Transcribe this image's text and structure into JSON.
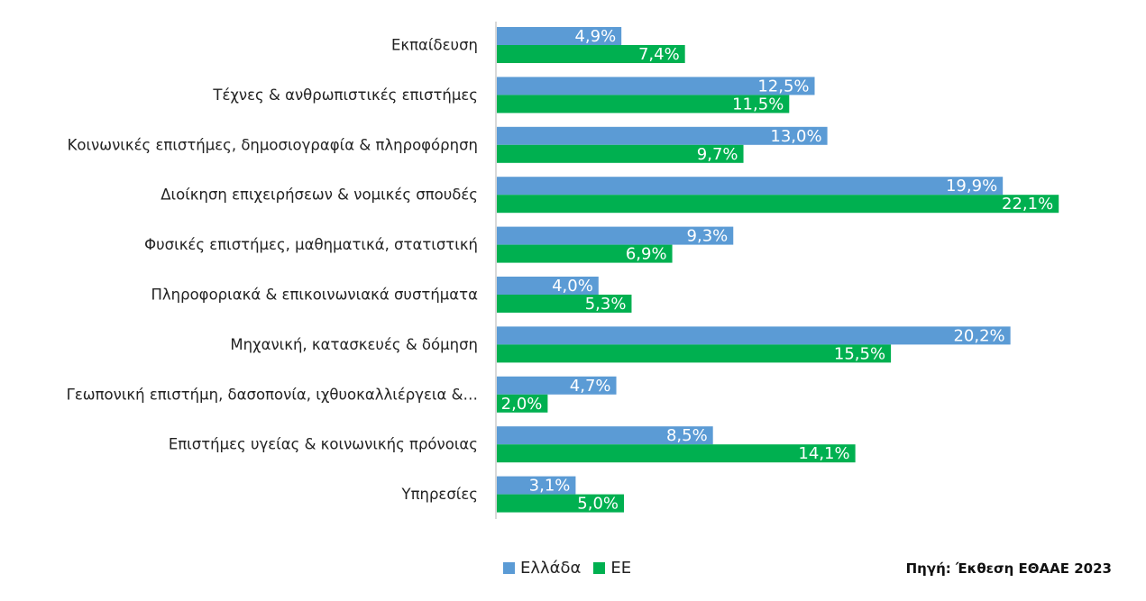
{
  "colors": {
    "ellada": "#5b9bd5",
    "ee": "#00b050",
    "axis": "#d9d9d9",
    "label_text": "#ffffff",
    "category_text": "#222222"
  },
  "legend": {
    "items": [
      {
        "label": "Ελλάδα",
        "color": "#5b9bd5"
      },
      {
        "label": "ΕΕ",
        "color": "#00b050"
      }
    ]
  },
  "source": "Πηγή: Έκθεση ΕΘΑΑΕ 2023",
  "chart_data": {
    "type": "bar",
    "orientation": "horizontal",
    "categories": [
      "Εκπαίδευση",
      "Τέχνες & ανθρωπιστικές επιστήμες",
      "Κοινωνικές επιστήμες, δημοσιογραφία & πληροφόρηση",
      "Διοίκηση επιχειρήσεων & νομικές σπουδές",
      "Φυσικές επιστήμες, μαθηματικά, στατιστική",
      "Πληροφοριακά & επικοινωνιακά συστήματα",
      "Μηχανική, κατασκευές & δόμηση",
      "Γεωπονική επιστήμη, δασοπονία, ιχθυοκαλλιέργεια &…",
      "Επιστήμες υγείας & κοινωνικής πρόνοιας",
      "Υπηρεσίες"
    ],
    "series": [
      {
        "name": "Ελλάδα",
        "color": "#5b9bd5",
        "values": [
          4.9,
          12.5,
          13.0,
          19.9,
          9.3,
          4.0,
          20.2,
          4.7,
          8.5,
          3.1
        ],
        "labels": [
          "4,9%",
          "12,5%",
          "13,0%",
          "19,9%",
          "9,3%",
          "4,0%",
          "20,2%",
          "4,7%",
          "8,5%",
          "3,1%"
        ]
      },
      {
        "name": "ΕΕ",
        "color": "#00b050",
        "values": [
          7.4,
          11.5,
          9.7,
          22.1,
          6.9,
          5.3,
          15.5,
          2.0,
          14.1,
          5.0
        ],
        "labels": [
          "7,4%",
          "11,5%",
          "9,7%",
          "22,1%",
          "6,9%",
          "5,3%",
          "15,5%",
          "2,0%",
          "14,1%",
          "5,0%"
        ]
      }
    ],
    "xlim": [
      0,
      22.1
    ],
    "xlabel": "",
    "ylabel": "",
    "grid": false,
    "legend_position": "bottom"
  }
}
